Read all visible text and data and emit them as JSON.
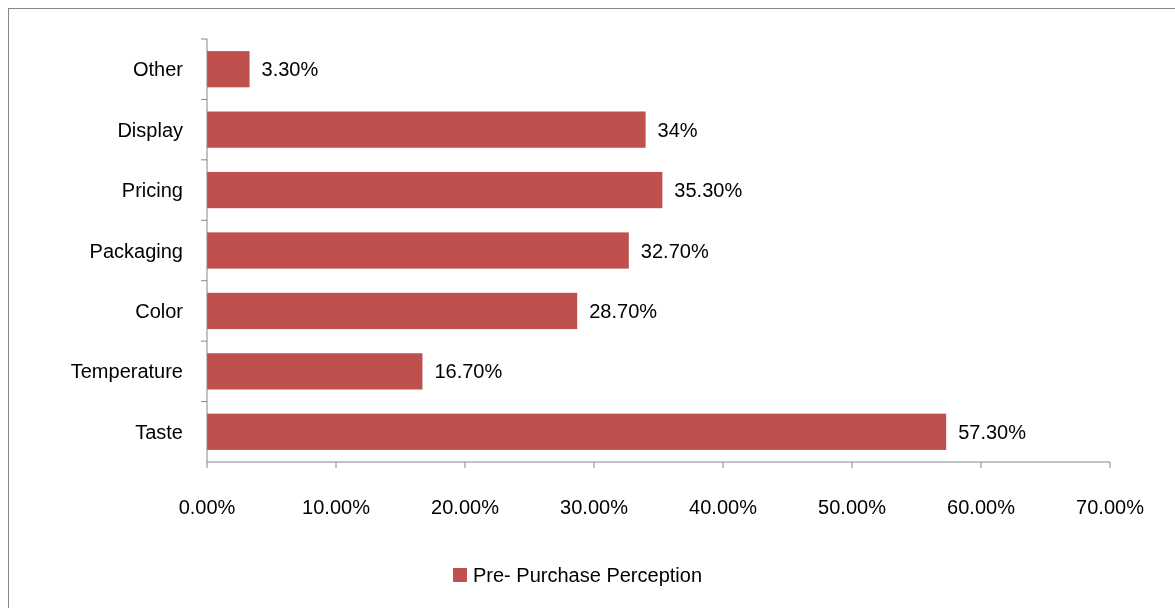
{
  "chart_data": {
    "type": "bar",
    "orientation": "horizontal",
    "categories": [
      "Other",
      "Display",
      "Pricing",
      "Packaging",
      "Color",
      "Temperature",
      "Taste"
    ],
    "series": [
      {
        "name": "Pre- Purchase Perception",
        "color": "#c0504d",
        "values": [
          3.3,
          34,
          35.3,
          32.7,
          28.7,
          16.7,
          57.3
        ],
        "value_labels": [
          "3.30%",
          "34%",
          "35.30%",
          "32.70%",
          "28.70%",
          "16.70%",
          "57.30%"
        ]
      }
    ],
    "xlim": [
      0,
      70
    ],
    "xticks": [
      {
        "value": 0,
        "label": "0.00%"
      },
      {
        "value": 10,
        "label": "10.00%"
      },
      {
        "value": 20,
        "label": "20.00%"
      },
      {
        "value": 30,
        "label": "30.00%"
      },
      {
        "value": 40,
        "label": "40.00%"
      },
      {
        "value": 50,
        "label": "50.00%"
      },
      {
        "value": 60,
        "label": "60.00%"
      },
      {
        "value": 70,
        "label": "70.00%"
      }
    ],
    "grid": false,
    "legend": "bottom"
  }
}
